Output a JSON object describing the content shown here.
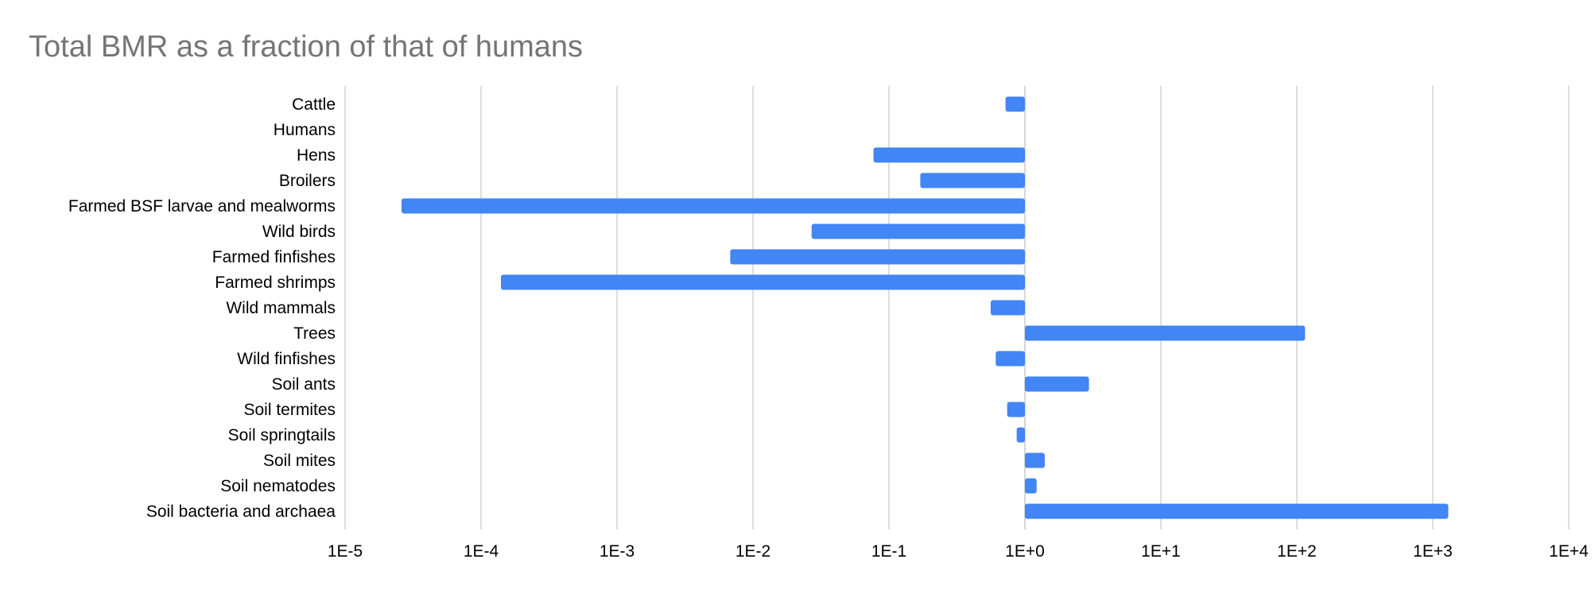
{
  "chart_data": {
    "type": "bar",
    "orientation": "horizontal",
    "title": "Total BMR as a fraction of that of humans",
    "xlabel": "",
    "ylabel": "",
    "x_scale": "log10",
    "xlim": [
      1e-05,
      10000
    ],
    "baseline": 1,
    "grid": true,
    "legend": "none",
    "bar_color": "#4285f4",
    "grid_color": "#cccccc",
    "tick_labels": [
      "1E-5",
      "1E-4",
      "1E-3",
      "1E-2",
      "1E-1",
      "1E+0",
      "1E+1",
      "1E+2",
      "1E+3",
      "1E+4"
    ],
    "tick_values": [
      1e-05,
      0.0001,
      0.001,
      0.01,
      0.1,
      1,
      10,
      100,
      1000,
      10000
    ],
    "categories": [
      "Cattle",
      "Humans",
      "Hens",
      "Broilers",
      "Farmed BSF larvae and mealworms",
      "Wild birds",
      "Farmed finfishes",
      "Farmed shrimps",
      "Wild mammals",
      "Trees",
      "Wild finfishes",
      "Soil ants",
      "Soil termites",
      "Soil springtails",
      "Soil mites",
      "Soil nematodes",
      "Soil bacteria and archaea"
    ],
    "values": [
      0.72,
      1,
      0.077,
      0.17,
      2.6e-05,
      0.027,
      0.0068,
      0.00014,
      0.56,
      115,
      0.61,
      2.96,
      0.74,
      0.87,
      1.4,
      1.22,
      1300
    ]
  }
}
